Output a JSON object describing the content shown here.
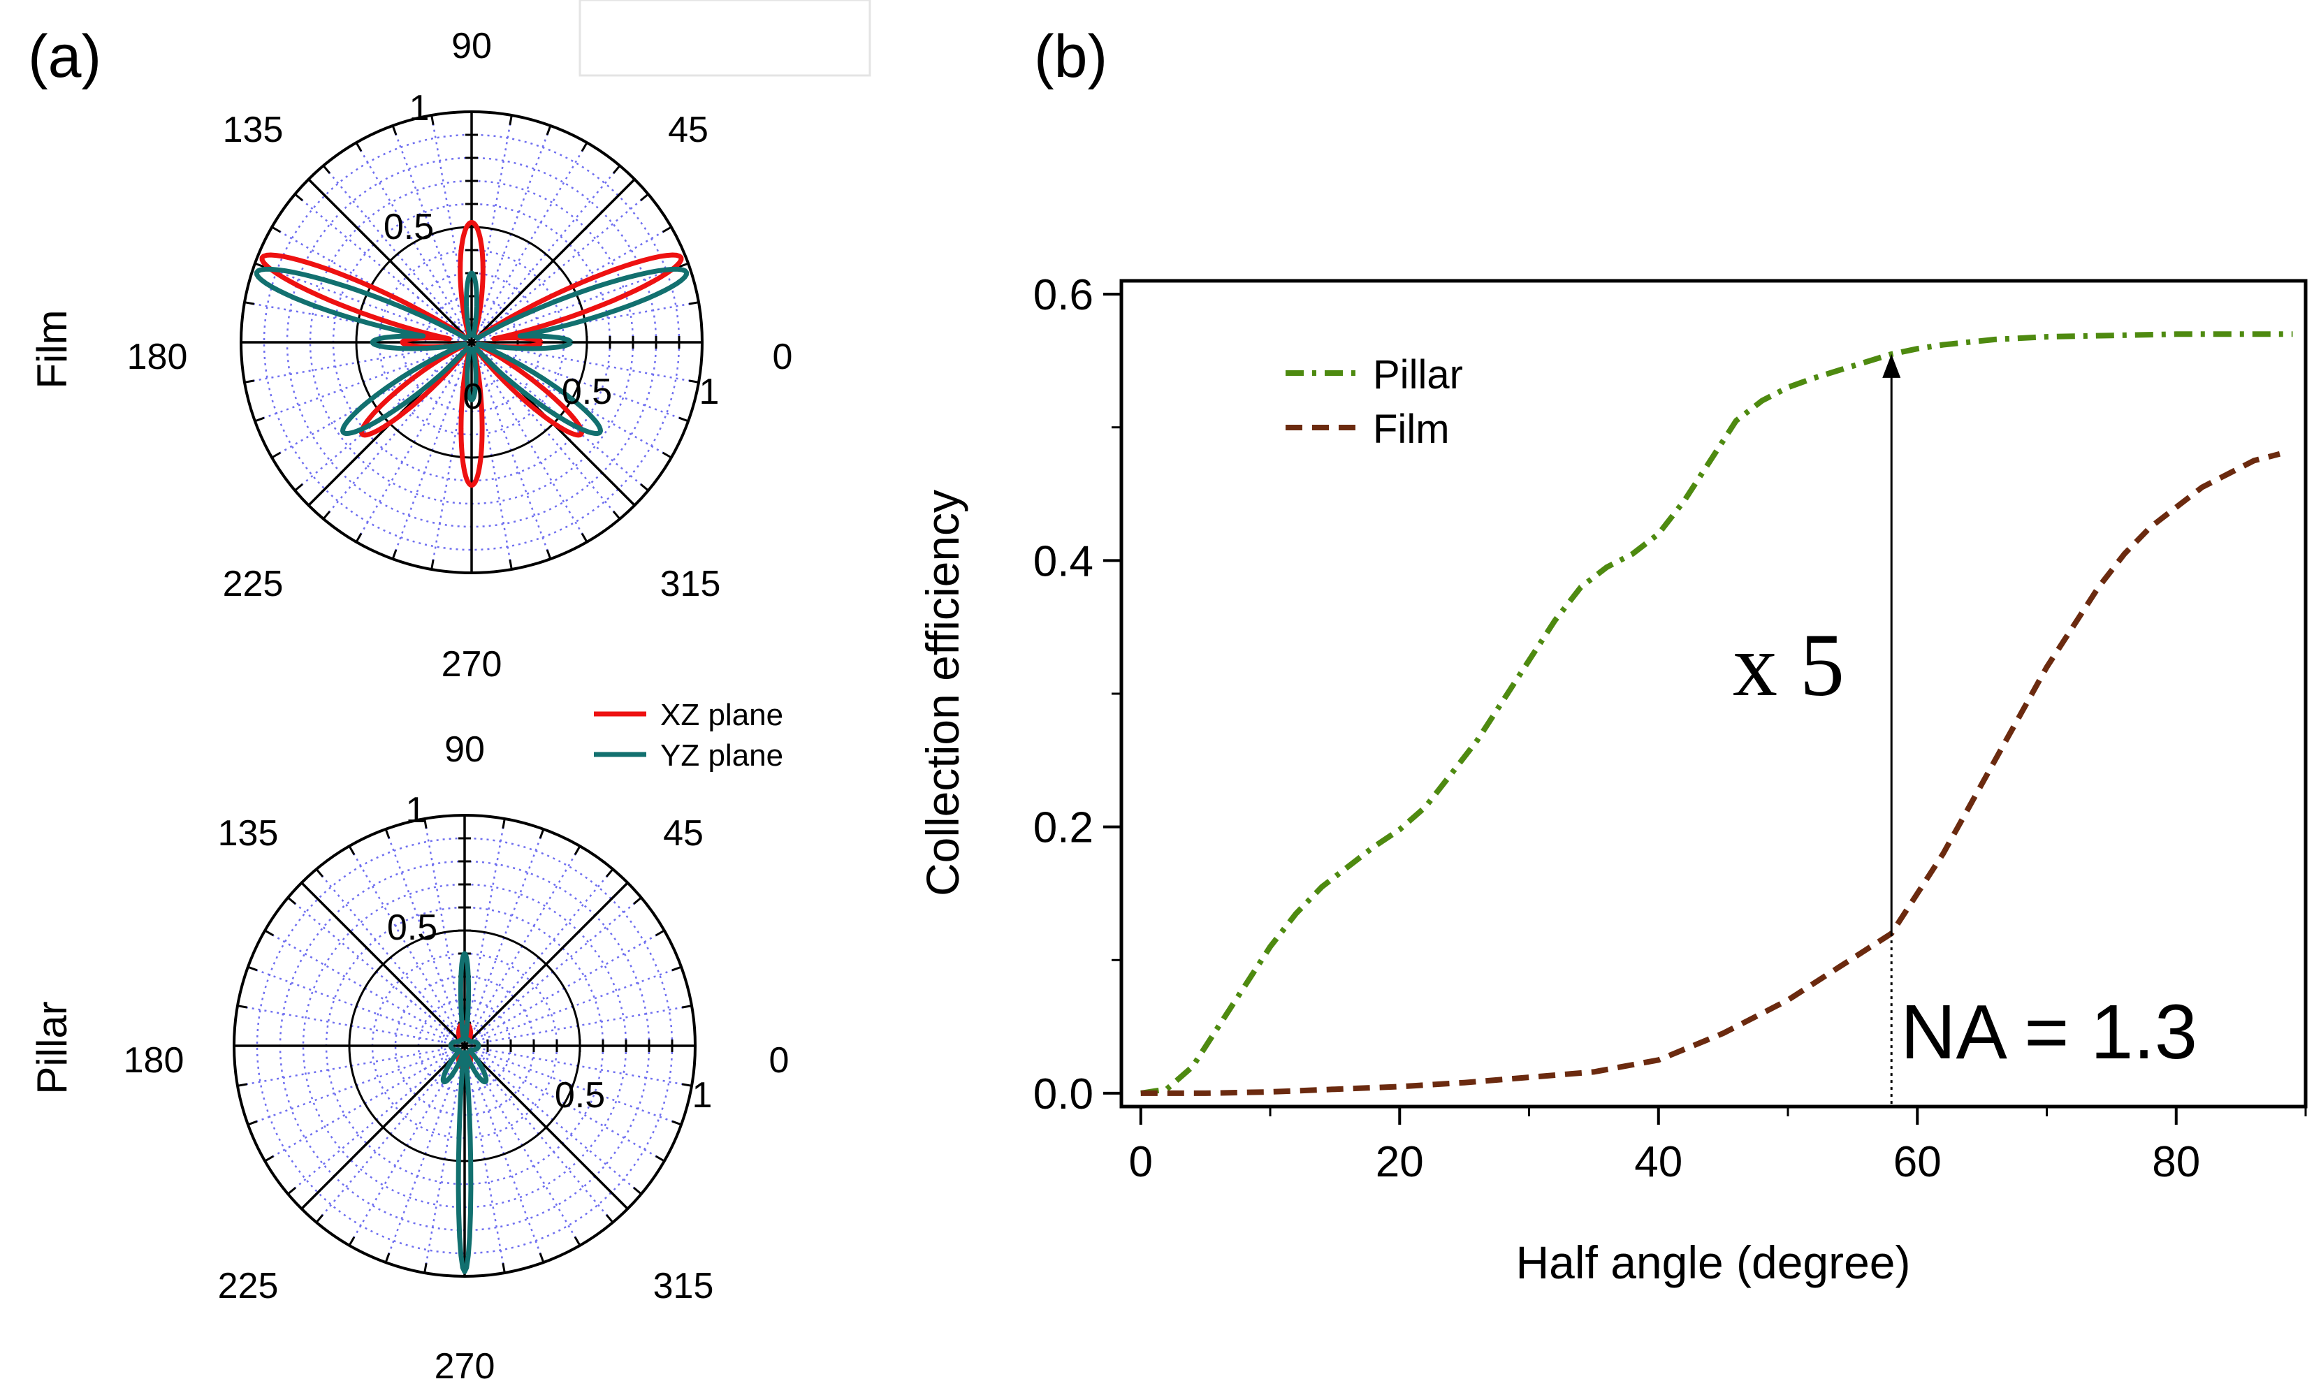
{
  "panel_a_label": "(a)",
  "panel_b_label": "(b)",
  "legend_a": {
    "xz": "XZ plane",
    "yz": "YZ plane",
    "xz_color": "#ee1111",
    "yz_color": "#12706f"
  },
  "chart_data": [
    {
      "type": "polar",
      "row_label": "Film",
      "angle_labels": [
        "0",
        "45",
        "90",
        "135",
        "180",
        "225",
        "270",
        "315"
      ],
      "radial_ticks": [
        "0",
        "0.5",
        "1"
      ],
      "radial_axis_labels": [
        "0.5",
        "1"
      ],
      "rlim": [
        0,
        1
      ],
      "series": [
        {
          "name": "XZ plane",
          "color": "#ee1111",
          "lobes": [
            {
              "angle": 90,
              "r": 0.52,
              "width": 9
            },
            {
              "angle": 270,
              "r": 0.62,
              "width": 7
            },
            {
              "angle": 22,
              "r": 0.98,
              "width": 6
            },
            {
              "angle": 158,
              "r": 0.98,
              "width": 6
            },
            {
              "angle": 320,
              "r": 0.62,
              "width": 7
            },
            {
              "angle": 220,
              "r": 0.62,
              "width": 7
            },
            {
              "angle": 0,
              "r": 0.3,
              "width": 6
            },
            {
              "angle": 180,
              "r": 0.3,
              "width": 6
            }
          ]
        },
        {
          "name": "YZ plane",
          "color": "#12706f",
          "lobes": [
            {
              "angle": 90,
              "r": 0.3,
              "width": 7
            },
            {
              "angle": 270,
              "r": 0.25,
              "width": 7
            },
            {
              "angle": 18,
              "r": 0.98,
              "width": 6
            },
            {
              "angle": 162,
              "r": 0.98,
              "width": 6
            },
            {
              "angle": 325,
              "r": 0.68,
              "width": 7
            },
            {
              "angle": 215,
              "r": 0.68,
              "width": 7
            },
            {
              "angle": 0,
              "r": 0.43,
              "width": 6
            },
            {
              "angle": 180,
              "r": 0.43,
              "width": 6
            }
          ]
        }
      ]
    },
    {
      "type": "polar",
      "row_label": "Pillar",
      "angle_labels": [
        "0",
        "45",
        "90",
        "135",
        "180",
        "225",
        "270",
        "315"
      ],
      "radial_ticks": [
        "0.5",
        "1"
      ],
      "radial_axis_labels": [
        "0.5",
        "1"
      ],
      "rlim": [
        0,
        1
      ],
      "series": [
        {
          "name": "XZ plane",
          "color": "#ee1111",
          "lobes": [
            {
              "angle": 90,
              "r": 0.1,
              "width": 25
            },
            {
              "angle": 270,
              "r": 0.1,
              "width": 25
            },
            {
              "angle": 0,
              "r": 0.06,
              "width": 30
            },
            {
              "angle": 180,
              "r": 0.06,
              "width": 30
            }
          ]
        },
        {
          "name": "YZ plane",
          "color": "#12706f",
          "lobes": [
            {
              "angle": 90,
              "r": 0.4,
              "width": 4
            },
            {
              "angle": 270,
              "r": 0.98,
              "width": 2.6
            },
            {
              "angle": 300,
              "r": 0.18,
              "width": 9
            },
            {
              "angle": 240,
              "r": 0.18,
              "width": 9
            },
            {
              "angle": 0,
              "r": 0.06,
              "width": 30
            },
            {
              "angle": 180,
              "r": 0.06,
              "width": 30
            }
          ]
        }
      ]
    },
    {
      "type": "line",
      "xlabel": "Half angle (degree)",
      "ylabel": "Collection efficiency",
      "xlim": [
        -1.5,
        90
      ],
      "ylim": [
        -0.01,
        0.61
      ],
      "xticks": [
        0,
        20,
        40,
        60,
        80
      ],
      "xtick_labels": [
        "0",
        "20",
        "40",
        "60",
        "80"
      ],
      "yticks": [
        0,
        0.2,
        0.4,
        0.6
      ],
      "ytick_labels": [
        "0.0",
        "0.2",
        "0.4",
        "0.6"
      ],
      "series": [
        {
          "name": "Pillar",
          "color": "#4e8a10",
          "style": "dash-dot",
          "x": [
            0,
            2,
            4,
            6,
            8,
            10,
            12,
            14,
            16,
            18,
            20,
            22,
            24,
            26,
            28,
            30,
            32,
            34,
            36,
            38,
            40,
            42,
            44,
            46,
            48,
            50,
            52,
            54,
            56,
            58,
            60,
            62,
            64,
            66,
            68,
            70,
            75,
            80,
            85,
            89
          ],
          "values": [
            0.0,
            0.003,
            0.02,
            0.05,
            0.08,
            0.11,
            0.135,
            0.155,
            0.17,
            0.185,
            0.198,
            0.215,
            0.24,
            0.265,
            0.295,
            0.325,
            0.355,
            0.38,
            0.395,
            0.405,
            0.42,
            0.445,
            0.475,
            0.505,
            0.52,
            0.53,
            0.537,
            0.543,
            0.549,
            0.555,
            0.559,
            0.562,
            0.564,
            0.566,
            0.567,
            0.568,
            0.569,
            0.57,
            0.57,
            0.57
          ]
        },
        {
          "name": "Film",
          "color": "#6b2a0f",
          "style": "dashed",
          "x": [
            0,
            5,
            10,
            15,
            20,
            25,
            30,
            35,
            40,
            45,
            50,
            54,
            58,
            60,
            62,
            64,
            66,
            68,
            70,
            72,
            74,
            76,
            78,
            80,
            82,
            84,
            86,
            88
          ],
          "values": [
            0.0,
            0.0,
            0.001,
            0.003,
            0.005,
            0.008,
            0.012,
            0.016,
            0.025,
            0.045,
            0.07,
            0.095,
            0.12,
            0.15,
            0.18,
            0.215,
            0.25,
            0.285,
            0.32,
            0.35,
            0.38,
            0.405,
            0.425,
            0.44,
            0.455,
            0.465,
            0.475,
            0.48
          ]
        }
      ],
      "legend": [
        "Pillar",
        "Film"
      ],
      "legend_position": "top-left",
      "annotations": {
        "ratio": "x 5",
        "na": "NA = 1.3",
        "arrow_x": 58,
        "arrow_from": 0.12,
        "arrow_to": 0.555
      }
    }
  ]
}
